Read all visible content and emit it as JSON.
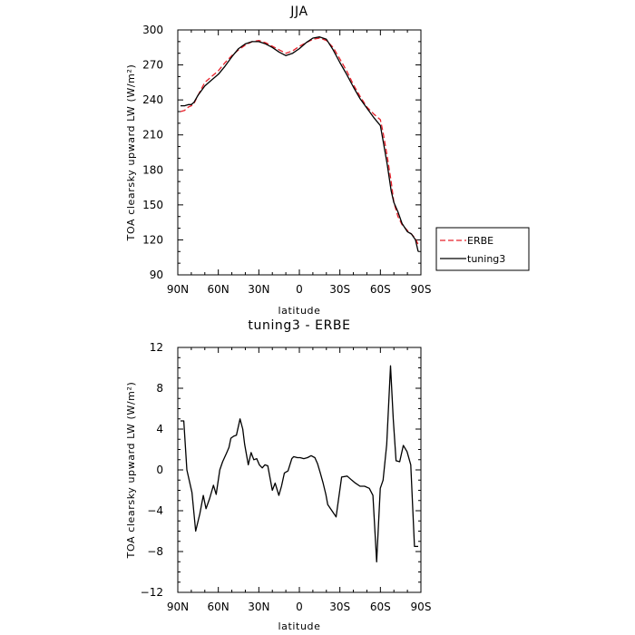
{
  "chart_data": [
    {
      "type": "line",
      "title": "JJA",
      "xlabel": "latitude",
      "ylabel": "TOA clearsky upward LW (W/m²)",
      "xlim": [
        -90,
        90
      ],
      "ylim": [
        90,
        300
      ],
      "x_ticks": [
        -90,
        -60,
        -30,
        0,
        30,
        60,
        90
      ],
      "x_tick_labels": [
        "90N",
        "60N",
        "30N",
        "0",
        "30S",
        "60S",
        "90S"
      ],
      "y_ticks": [
        90,
        120,
        150,
        180,
        210,
        240,
        270,
        300
      ],
      "y_tick_labels": [
        "90",
        "120",
        "150",
        "180",
        "210",
        "240",
        "270",
        "300"
      ],
      "legend": {
        "placement": "right",
        "entries": [
          "ERBE",
          "tuning3"
        ]
      },
      "series": [
        {
          "name": "ERBE",
          "color": "#e8202a",
          "dash": "dashed",
          "x": [
            -88,
            -85,
            -82,
            -80,
            -78,
            -75,
            -70,
            -65,
            -60,
            -55,
            -50,
            -45,
            -40,
            -35,
            -30,
            -25,
            -20,
            -15,
            -10,
            -5,
            0,
            5,
            10,
            15,
            20,
            25,
            30,
            35,
            40,
            45,
            50,
            55,
            60,
            62,
            65,
            68,
            70,
            73,
            76,
            80,
            83,
            86,
            88
          ],
          "y": [
            230,
            231,
            234,
            235,
            237,
            244,
            255,
            260,
            265,
            272,
            278,
            283,
            287,
            290,
            291,
            289,
            286,
            283,
            280,
            282,
            286,
            289,
            292,
            293,
            291,
            285,
            275,
            265,
            253,
            243,
            234,
            228,
            223,
            212,
            192,
            170,
            152,
            140,
            133,
            128,
            125,
            121,
            116
          ]
        },
        {
          "name": "tuning3",
          "color": "#000000",
          "dash": "solid",
          "x": [
            -88,
            -85,
            -82,
            -80,
            -78,
            -75,
            -70,
            -65,
            -60,
            -55,
            -50,
            -45,
            -40,
            -35,
            -30,
            -25,
            -20,
            -15,
            -10,
            -5,
            0,
            5,
            10,
            15,
            20,
            25,
            30,
            35,
            40,
            45,
            50,
            55,
            60,
            62,
            65,
            68,
            70,
            73,
            76,
            80,
            83,
            86,
            88
          ],
          "y": [
            235,
            235,
            236,
            236,
            238,
            244,
            252,
            257,
            262,
            269,
            277,
            284,
            288,
            290,
            290,
            288,
            285,
            281,
            278,
            280,
            284,
            289,
            293,
            294,
            292,
            283,
            272,
            262,
            251,
            241,
            233,
            225,
            218,
            205,
            185,
            162,
            152,
            144,
            134,
            127,
            125,
            120,
            110
          ]
        }
      ]
    },
    {
      "type": "line",
      "title": "tuning3 - ERBE",
      "xlabel": "latitude",
      "ylabel": "TOA clearsky upward LW (W/m²)",
      "xlim": [
        -90,
        90
      ],
      "ylim": [
        -12,
        12
      ],
      "x_ticks": [
        -90,
        -60,
        -30,
        0,
        30,
        60,
        90
      ],
      "x_tick_labels": [
        "90N",
        "60N",
        "30N",
        "0",
        "30S",
        "60S",
        "90S"
      ],
      "y_ticks": [
        -12,
        -8,
        -4,
        0,
        4,
        8,
        12
      ],
      "y_tick_labels": [
        "−12",
        "−8",
        "−4",
        "0",
        "4",
        "8",
        "12"
      ],
      "series": [
        {
          "color": "#000000",
          "dash": "solid",
          "x": [
            -88.0,
            -85.6,
            -83.3,
            -79.5,
            -76.8,
            -73.7,
            -71.1,
            -69.1,
            -66.4,
            -63.6,
            -61.6,
            -58.9,
            -56.8,
            -54.1,
            -52.1,
            -50.7,
            -48.7,
            -46.6,
            -43.9,
            -41.9,
            -40.5,
            -37.8,
            -35.7,
            -33.7,
            -31.6,
            -29.6,
            -27.5,
            -25.5,
            -23.4,
            -20.0,
            -17.9,
            -15.2,
            -13.2,
            -11.1,
            -8.4,
            -5.6,
            -4.2,
            -1.5,
            0.6,
            3.3,
            6.0,
            8.7,
            11.5,
            13.5,
            15.5,
            17.6,
            19.6,
            21.0,
            27.2,
            31.3,
            35.4,
            38.8,
            41.5,
            44.9,
            48.3,
            51.8,
            54.5,
            57.2,
            59.9,
            62.0,
            64.7,
            67.5,
            69.5,
            71.6,
            74.3,
            77.0,
            79.7,
            82.5,
            85.2,
            88.0
          ],
          "y": [
            4.8,
            4.8,
            0.0,
            -2.2,
            -6.0,
            -4.3,
            -2.5,
            -3.8,
            -2.8,
            -1.5,
            -2.4,
            0.0,
            0.8,
            1.6,
            2.2,
            3.1,
            3.3,
            3.4,
            5.0,
            4.0,
            2.5,
            0.5,
            1.7,
            1.0,
            1.1,
            0.5,
            0.2,
            0.5,
            0.4,
            -2.0,
            -1.3,
            -2.5,
            -1.6,
            -0.3,
            -0.1,
            1.1,
            1.3,
            1.2,
            1.2,
            1.1,
            1.2,
            1.4,
            1.2,
            0.6,
            -0.3,
            -1.3,
            -2.4,
            -3.4,
            -4.6,
            -0.7,
            -0.6,
            -1.0,
            -1.3,
            -1.6,
            -1.6,
            -1.8,
            -2.5,
            -9.0,
            -1.8,
            -1.0,
            2.5,
            10.2,
            5.0,
            0.9,
            0.8,
            2.4,
            1.8,
            0.5,
            -7.5,
            -7.5
          ]
        }
      ]
    }
  ]
}
